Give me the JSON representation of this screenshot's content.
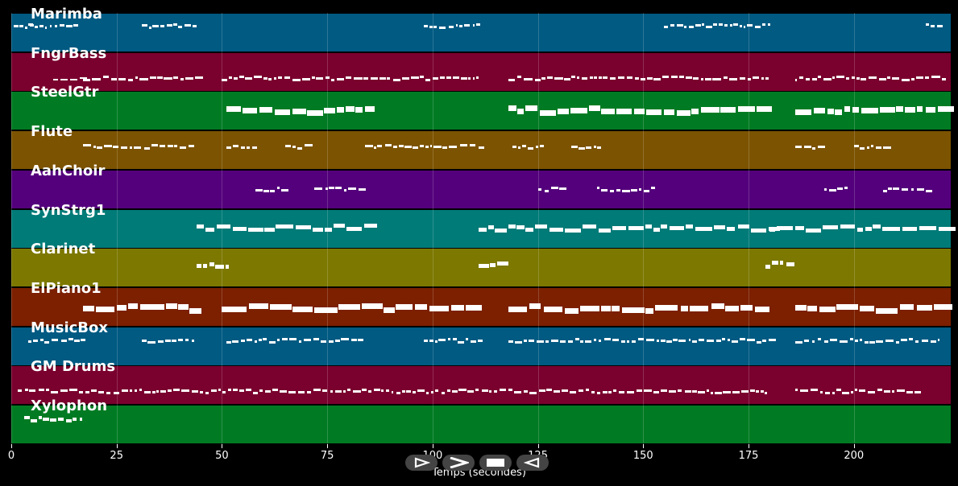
{
  "tracks": [
    {
      "name": "Marimba",
      "color": "#005a82",
      "notes": [
        [
          0.5,
          5,
          1.4,
          3
        ],
        [
          4,
          16,
          1.2,
          3
        ],
        [
          31,
          44,
          1.2,
          3
        ],
        [
          98,
          111,
          1.2,
          3
        ],
        [
          155,
          180,
          1.2,
          3
        ],
        [
          217,
          220,
          1.2,
          3
        ]
      ]
    },
    {
      "name": "FngrBass",
      "color": "#7a002e",
      "notes": [
        [
          10,
          17,
          2,
          2
        ],
        [
          17,
          44,
          1.5,
          3
        ],
        [
          50,
          84,
          1.5,
          3
        ],
        [
          84,
          111,
          1.5,
          3
        ],
        [
          118,
          180,
          1.5,
          3
        ],
        [
          186,
          222,
          1.5,
          3
        ]
      ]
    },
    {
      "name": "SteelGtr",
      "color": "#007b23",
      "notes": [
        [
          51,
          84,
          3,
          7
        ],
        [
          118,
          179,
          3,
          7
        ],
        [
          186,
          220,
          3,
          7
        ]
      ]
    },
    {
      "name": "Flute",
      "color": "#7c5300",
      "notes": [
        [
          17,
          43,
          1.4,
          3
        ],
        [
          51,
          58,
          1.4,
          3
        ],
        [
          65,
          72,
          1.4,
          3
        ],
        [
          84,
          111,
          1.4,
          3
        ],
        [
          119,
          126,
          1.4,
          3
        ],
        [
          133,
          140,
          1.4,
          3
        ],
        [
          186,
          193,
          1.4,
          3
        ],
        [
          200,
          207,
          1.4,
          3
        ]
      ]
    },
    {
      "name": "AahChoir",
      "color": "#54007c",
      "notes": [
        [
          58,
          65,
          1.4,
          3
        ],
        [
          72,
          84,
          1.4,
          3
        ],
        [
          125,
          132,
          1.4,
          3
        ],
        [
          139,
          152,
          1.4,
          3
        ],
        [
          193,
          199,
          1.4,
          3
        ],
        [
          207,
          219,
          1.4,
          3
        ]
      ]
    },
    {
      "name": "SynStrg1",
      "color": "#007b78",
      "notes": [
        [
          44,
          84,
          3,
          5
        ],
        [
          111,
          180,
          3,
          5
        ],
        [
          180,
          222,
          3,
          5
        ]
      ]
    },
    {
      "name": "Clarinet",
      "color": "#7c7800",
      "notes": [
        [
          44,
          51,
          2,
          5
        ],
        [
          111,
          118,
          2,
          5
        ],
        [
          179,
          186,
          2,
          5
        ]
      ]
    },
    {
      "name": "ElPiano1",
      "color": "#7c2000",
      "notes": [
        [
          17,
          44,
          4,
          7
        ],
        [
          50,
          111,
          4,
          7
        ],
        [
          118,
          180,
          4,
          7
        ],
        [
          186,
          220,
          4,
          7
        ]
      ]
    },
    {
      "name": "MusicBox",
      "color": "#005a82",
      "notes": [
        [
          4,
          17,
          1.4,
          3
        ],
        [
          31,
          44,
          1.4,
          3
        ],
        [
          51,
          84,
          1.4,
          3
        ],
        [
          98,
          111,
          1.4,
          3
        ],
        [
          118,
          180,
          1.4,
          3
        ],
        [
          186,
          220,
          1.4,
          3
        ]
      ]
    },
    {
      "name": "GM Drums",
      "color": "#7a002e",
      "notes": [
        [
          1.5,
          118,
          1.4,
          3
        ],
        [
          118,
          179,
          1.4,
          3
        ],
        [
          186,
          216,
          1.4,
          3
        ]
      ]
    },
    {
      "name": "Xylophon",
      "color": "#007b23",
      "notes": [
        [
          3,
          17,
          1.4,
          4
        ]
      ]
    }
  ],
  "axis": {
    "xmin": 0,
    "xmax": 223,
    "ticks": [
      {
        "value": 0,
        "label": "0"
      },
      {
        "value": 25,
        "label": "25"
      },
      {
        "value": 50,
        "label": "50"
      },
      {
        "value": 75,
        "label": "75"
      },
      {
        "value": 100,
        "label": "100"
      },
      {
        "value": 125,
        "label": "125"
      },
      {
        "value": 150,
        "label": "150"
      },
      {
        "value": 175,
        "label": "175"
      },
      {
        "value": 200,
        "label": "200"
      }
    ],
    "title": "Temps (secondes)"
  },
  "transport": [
    {
      "name": "play-icon"
    },
    {
      "name": "fast-forward-icon"
    },
    {
      "name": "stop-icon"
    },
    {
      "name": "rewind-icon"
    }
  ]
}
